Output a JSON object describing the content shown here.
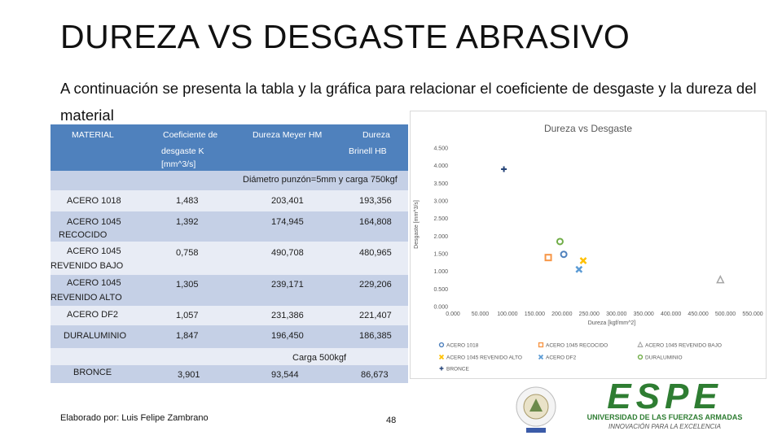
{
  "slide": {
    "title": "DUREZA VS DESGASTE ABRASIVO",
    "intro": "A continuación se presenta la tabla y la gráfica para relacionar el coeficiente de desgaste y la dureza del material",
    "footer": "Elaborado por: Luis Felipe Zambrano",
    "page_number": "48"
  },
  "table": {
    "headers": {
      "material": "MATERIAL",
      "coef_line1": "Coeficiente de",
      "coef_line2": "desgaste K",
      "coef_line3": "[mm^3/s]",
      "meyer": "Dureza Meyer HM",
      "brinell_line1": "Dureza",
      "brinell_line2": "Brinell HB"
    },
    "subheader1": "Diámetro punzón=5mm y carga 750kgf",
    "subheader2": "Carga 500kgf",
    "rows": [
      {
        "material": "ACERO 1018",
        "material2": "",
        "k": "1,483",
        "hm": "203,401",
        "hb": "193,356"
      },
      {
        "material": "ACERO 1045",
        "material2": "RECOCIDO",
        "k": "1,392",
        "hm": "174,945",
        "hb": "164,808"
      },
      {
        "material": "ACERO 1045",
        "material2": "REVENIDO BAJO",
        "k": "0,758",
        "hm": "490,708",
        "hb": "480,965"
      },
      {
        "material": "ACERO 1045",
        "material2": "REVENIDO ALTO",
        "k": "1,305",
        "hm": "239,171",
        "hb": "229,206"
      },
      {
        "material": "ACERO DF2",
        "material2": "",
        "k": "1,057",
        "hm": "231,386",
        "hb": "221,407"
      },
      {
        "material": "DURALUMINIO",
        "material2": "",
        "k": "1,847",
        "hm": "196,450",
        "hb": "186,385"
      },
      {
        "material": "BRONCE",
        "material2": "",
        "k": "3,901",
        "hm": "93,544",
        "hb": "86,673"
      }
    ]
  },
  "chart_data": {
    "type": "scatter",
    "title": "Dureza vs Desgaste",
    "xlabel": "Dureza [kgf/mm^2]",
    "ylabel": "Desgaste [mm^3/s]",
    "xlim": [
      0,
      550
    ],
    "ylim": [
      0,
      4.5
    ],
    "x_ticks": [
      "0.000",
      "50.000",
      "100.000",
      "150.000",
      "200.000",
      "250.000",
      "300.000",
      "350.000",
      "400.000",
      "450.000",
      "500.000",
      "550.000"
    ],
    "y_ticks": [
      "0.000",
      "0.500",
      "1.000",
      "1.500",
      "2.000",
      "2.500",
      "3.000",
      "3.500",
      "4.000",
      "4.500"
    ],
    "legend_position": "bottom",
    "series": [
      {
        "name": "ACERO 1018",
        "color": "#4f81bd",
        "marker": "circle",
        "x": [
          203.401
        ],
        "y": [
          1.483
        ]
      },
      {
        "name": "ACERO 1045 RECOCIDO",
        "color": "#f79646",
        "marker": "square",
        "x": [
          174.945
        ],
        "y": [
          1.392
        ]
      },
      {
        "name": "ACERO 1045 REVENIDO BAJO",
        "color": "#a5a5a5",
        "marker": "triangle",
        "x": [
          490.708
        ],
        "y": [
          0.758
        ]
      },
      {
        "name": "ACERO 1045 REVENIDO ALTO",
        "color": "#ffc000",
        "marker": "x",
        "x": [
          239.171
        ],
        "y": [
          1.305
        ]
      },
      {
        "name": "ACERO DF2",
        "color": "#5b9bd5",
        "marker": "x",
        "x": [
          231.386
        ],
        "y": [
          1.057
        ]
      },
      {
        "name": "DURALUMINIO",
        "color": "#70ad47",
        "marker": "circle",
        "x": [
          196.45
        ],
        "y": [
          1.847
        ]
      },
      {
        "name": "BRONCE",
        "color": "#264478",
        "marker": "plus",
        "x": [
          93.544
        ],
        "y": [
          3.901
        ]
      }
    ]
  },
  "logo": {
    "brand": "ESPE",
    "tagline1": "UNIVERSIDAD DE LAS FUERZAS ARMADAS",
    "tagline2": "INNOVACIÓN PARA LA EXCELENCIA",
    "color": "#2e7d32"
  }
}
